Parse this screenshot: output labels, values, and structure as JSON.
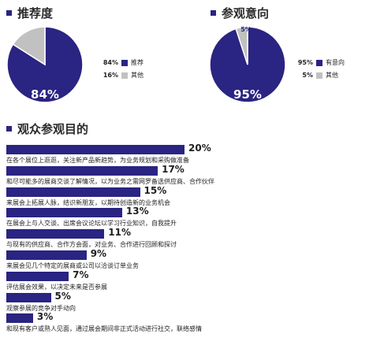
{
  "colors": {
    "primary": "#2a2482",
    "secondary": "#c1c1c1"
  },
  "section_recommend": {
    "title": "推荐度",
    "center_label": "84%",
    "slice_label": "16%",
    "legend": [
      {
        "pct": "84%",
        "label": "推荐"
      },
      {
        "pct": "16%",
        "label": "其他"
      }
    ]
  },
  "section_intent": {
    "title": "参观意向",
    "center_label": "95%",
    "slice_label": "5%",
    "legend": [
      {
        "pct": "95%",
        "label": "有意向"
      },
      {
        "pct": "5%",
        "label": "其他"
      }
    ]
  },
  "section_purpose": {
    "title": "观众参观目的"
  },
  "chart_data": [
    {
      "type": "pie",
      "title": "推荐度",
      "categories": [
        "推荐",
        "其他"
      ],
      "values": [
        84,
        16
      ],
      "unit": "%"
    },
    {
      "type": "pie",
      "title": "参观意向",
      "categories": [
        "有意向",
        "其他"
      ],
      "values": [
        95,
        5
      ],
      "unit": "%"
    },
    {
      "type": "bar",
      "orientation": "horizontal",
      "title": "观众参观目的",
      "unit": "%",
      "xlim": [
        0,
        100
      ],
      "items": [
        {
          "value": 20,
          "label": "20%",
          "desc": "在各个展位上逛逛，关注新产品新趋势，为业务规划和采购做准备"
        },
        {
          "value": 17,
          "label": "17%",
          "desc": "和尽可能多的展商交谈了解情况，以为业务之需网罗备选供应商、合作伙伴"
        },
        {
          "value": 15,
          "label": "15%",
          "desc": "来展会上拓展人脉，结识新朋友，以期待创造新的业务机会"
        },
        {
          "value": 13,
          "label": "13%",
          "desc": "在展会上与人交谈、出席会议论坛以学习行业知识，自我提升"
        },
        {
          "value": 11,
          "label": "11%",
          "desc": "与现有的供应商、合作方会面，对业务、合作进行回顾和探讨"
        },
        {
          "value": 9,
          "label": "9%",
          "desc": "来展会见几个特定的展商或公司以洽谈订单业务"
        },
        {
          "value": 7,
          "label": "7%",
          "desc": "评估展会效果，以决定未来是否参展"
        },
        {
          "value": 5,
          "label": "5%",
          "desc": "观察参展的竞争对手动向"
        },
        {
          "value": 3,
          "label": "3%",
          "desc": "和现有客户或熟人见面，通过展会期间非正式活动进行社交，联络感情"
        }
      ]
    }
  ]
}
